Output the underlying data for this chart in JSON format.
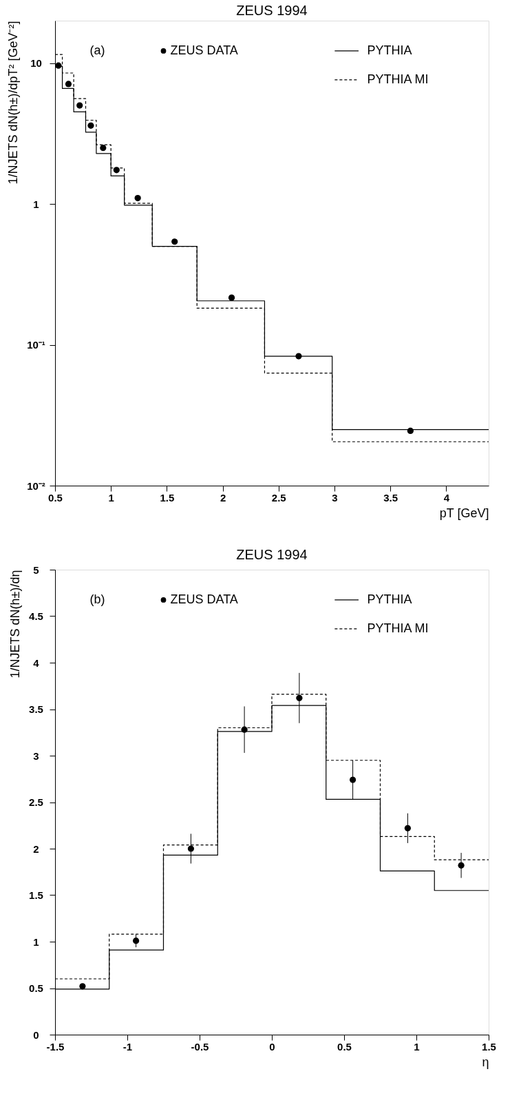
{
  "chart_data": [
    {
      "type": "step",
      "title": "ZEUS 1994",
      "xlabel": "pT [GeV]",
      "ylabel": "1/NJETS dN(h±)/dpT² [GeV⁻²]",
      "annotations": [
        "(a)"
      ],
      "log": true,
      "grid": false,
      "legend": "top",
      "xlim": [
        0.5,
        4.38
      ],
      "xticks": [
        0.5,
        1,
        1.5,
        2,
        2.5,
        3,
        3.5,
        4
      ],
      "ylim": [
        0.01,
        20
      ],
      "yticks": [
        {
          "value": 0.01,
          "label": "10⁻²"
        },
        {
          "value": 0.1,
          "label": "10⁻¹"
        },
        {
          "value": 1,
          "label": "1"
        },
        {
          "value": 10,
          "label": "10"
        }
      ],
      "x": [
        0.5,
        0.565,
        0.667,
        0.774,
        0.869,
        1.0,
        1.12,
        1.37,
        1.77,
        2.375,
        2.98,
        4.38
      ],
      "series": [
        {
          "name": "ZEUS DATA",
          "type": "scatter",
          "marker": "circle",
          "color": "#000000",
          "x": [
            0.53,
            0.62,
            0.72,
            0.82,
            0.93,
            1.05,
            1.24,
            1.57,
            2.08,
            2.68,
            3.68
          ],
          "values": [
            9.6,
            7.1,
            5.0,
            3.6,
            2.5,
            1.74,
            1.1,
            0.54,
            0.216,
            0.083,
            0.0245
          ]
        },
        {
          "name": "PYTHIA",
          "line_style": "solid",
          "color": "#000000",
          "values": [
            9.5,
            6.6,
            4.5,
            3.23,
            2.28,
            1.58,
            0.98,
            0.5,
            0.205,
            0.083,
            0.025,
            0.025
          ]
        },
        {
          "name": "PYTHIA MI",
          "line_style": "dashed",
          "color": "#000000",
          "values": [
            11.5,
            8.5,
            5.6,
            3.93,
            2.63,
            1.8,
            1.01,
            0.5,
            0.182,
            0.063,
            0.0205,
            0.0205
          ]
        }
      ]
    },
    {
      "type": "histogram",
      "title": "ZEUS 1994",
      "xlabel": "η",
      "ylabel": "1/NJETS dN(h±)/dη",
      "annotations": [
        "(b)"
      ],
      "grid": false,
      "legend": "top",
      "xlim": [
        -1.5,
        1.5
      ],
      "xticks": [
        -1.5,
        -1,
        -0.5,
        0,
        0.5,
        1,
        1.5
      ],
      "ylim": [
        0,
        5
      ],
      "yticks": [
        0,
        0.5,
        1,
        1.5,
        2,
        2.5,
        3,
        3.5,
        4,
        4.5,
        5
      ],
      "bins": [
        -1.5,
        -1.125,
        -0.75,
        -0.375,
        0,
        0.375,
        0.75,
        1.125,
        1.5
      ],
      "series": [
        {
          "name": "ZEUS DATA",
          "type": "scatter",
          "marker": "circle",
          "color": "#000000",
          "x": [
            -1.31,
            -0.94,
            -0.56,
            -0.19,
            0.19,
            0.56,
            0.94,
            1.31
          ],
          "values": [
            0.52,
            1.01,
            2.0,
            3.28,
            3.62,
            2.74,
            2.22,
            1.82
          ],
          "errors": [
            null,
            0.07,
            0.16,
            0.25,
            0.27,
            0.21,
            0.16,
            0.135
          ]
        },
        {
          "name": "PYTHIA",
          "line_style": "solid",
          "color": "#000000",
          "values": [
            0.49,
            0.91,
            1.93,
            3.26,
            3.54,
            2.53,
            1.76,
            1.55
          ]
        },
        {
          "name": "PYTHIA MI",
          "line_style": "dashed",
          "color": "#000000",
          "values": [
            0.6,
            1.08,
            2.04,
            3.3,
            3.66,
            2.95,
            2.13,
            1.88
          ]
        }
      ]
    }
  ]
}
